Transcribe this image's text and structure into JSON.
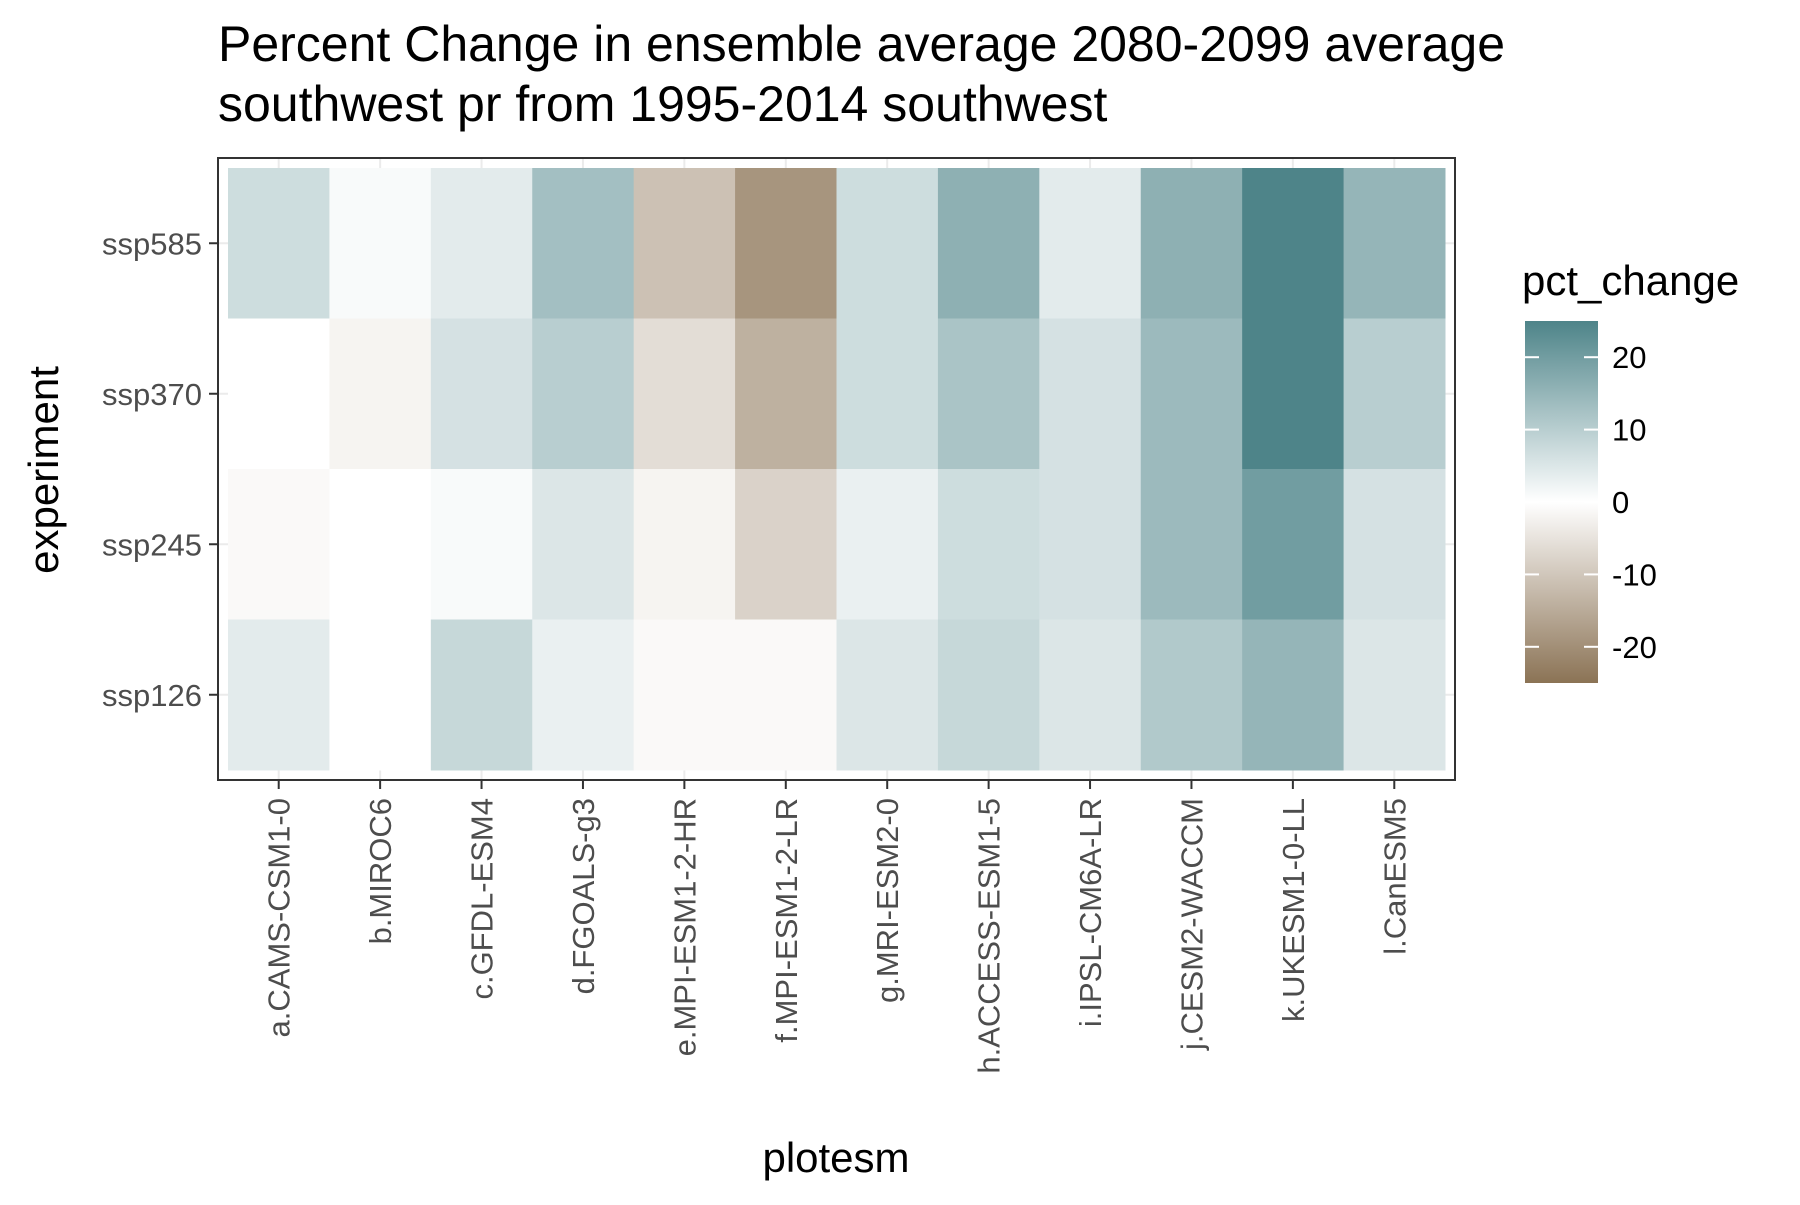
{
  "chart_data": {
    "type": "heatmap",
    "title_lines": [
      "Percent Change in ensemble average 2080-2099 average",
      "southwest pr from 1995-2014 southwest"
    ],
    "xlabel": "plotesm",
    "ylabel": "experiment",
    "x": [
      "a.CAMS-CSM1-0",
      "b.MIROC6",
      "c.GFDL-ESM4",
      "d.FGOALS-g3",
      "e.MPI-ESM1-2-HR",
      "f.MPI-ESM1-2-LR",
      "g.MRI-ESM2-0",
      "h.ACCESS-ESM1-5",
      "i.IPSL-CM6A-LR",
      "j.CESM2-WACCM",
      "k.UKESM1-0-LL",
      "l.CanESM5"
    ],
    "y": [
      "ssp585",
      "ssp370",
      "ssp245",
      "ssp126"
    ],
    "values": [
      [
        7,
        1,
        4,
        13,
        -11,
        -19,
        7,
        16,
        4,
        16,
        25,
        15
      ],
      [
        0,
        -2,
        6,
        10,
        -6,
        -14,
        7,
        12,
        6,
        14,
        25,
        10
      ],
      [
        -1,
        0,
        1,
        5,
        -2,
        -8,
        3,
        7,
        6,
        14,
        20,
        6
      ],
      [
        4,
        0,
        8,
        3,
        -1,
        -1,
        5,
        8,
        5,
        11,
        15,
        5
      ]
    ],
    "legend": {
      "title": "pct_change",
      "position": "right",
      "breaks": [
        20,
        10,
        0,
        -10,
        -20
      ],
      "break_labels": [
        "20",
        "10",
        "0",
        "-10",
        "-20"
      ],
      "limits": [
        -25,
        25
      ]
    },
    "colors": {
      "low": "#8b7355",
      "mid": "#ffffff",
      "high": "#4e8489"
    },
    "grid": true
  }
}
